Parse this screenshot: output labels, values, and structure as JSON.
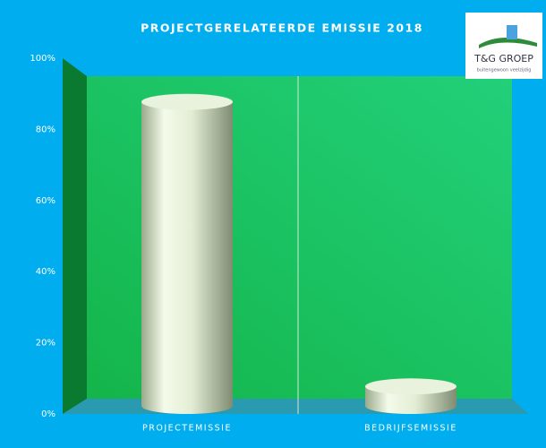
{
  "chart_data": {
    "type": "cylinder",
    "title": "PROJECTGERELATEERDE  EMISSIE  2018",
    "logo": {
      "name": "T&G GROEP",
      "tagline": "buitengewoon veelzijdig"
    },
    "categories": [
      "PROJECTEMISSIE",
      "BEDRIJFSEMISSIE"
    ],
    "values": [
      90,
      10
    ],
    "color": "#e8f2dc",
    "ylim": [
      0,
      100
    ],
    "yticks": [
      {
        "value": 0,
        "label": "0%"
      },
      {
        "value": 20,
        "label": "20%"
      },
      {
        "value": 40,
        "label": "40%"
      },
      {
        "value": 60,
        "label": "60%"
      },
      {
        "value": 80,
        "label": "80%"
      },
      {
        "value": 100,
        "label": "100%"
      }
    ],
    "grid": false
  }
}
